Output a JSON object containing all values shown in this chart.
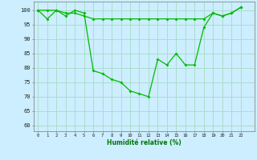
{
  "series1": [
    100,
    97,
    100,
    98,
    100,
    99,
    79,
    78,
    76,
    75,
    72,
    71,
    70,
    83,
    81,
    85,
    81,
    81,
    94,
    99,
    98,
    99,
    101
  ],
  "series2": [
    100,
    100,
    100,
    99,
    99,
    98,
    97,
    97,
    97,
    97,
    97,
    97,
    97,
    97,
    97,
    97,
    97,
    97,
    97,
    99,
    98,
    99,
    101
  ],
  "x": [
    0,
    1,
    2,
    3,
    4,
    5,
    6,
    7,
    8,
    9,
    10,
    11,
    12,
    13,
    14,
    15,
    16,
    17,
    18,
    19,
    20,
    21,
    22
  ],
  "line_color": "#00bb00",
  "bg_color": "#cceeff",
  "grid_color": "#aaddcc",
  "xlabel": "Humidité relative (%)",
  "xlabel_color": "#007700",
  "ylabel_ticks": [
    60,
    65,
    70,
    75,
    80,
    85,
    90,
    95,
    100
  ],
  "ylim": [
    58,
    103
  ],
  "xlim": [
    -0.5,
    23.5
  ]
}
